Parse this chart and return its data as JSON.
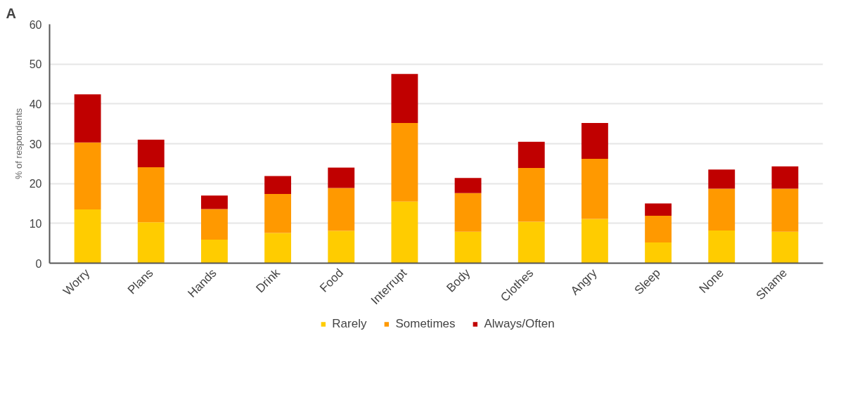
{
  "chart_data": {
    "type": "bar",
    "stacked": true,
    "ylabel": "% of respondents",
    "annotations": [
      "A"
    ],
    "categories": [
      "Worry",
      "Plans",
      "Hands",
      "Drink",
      "Food",
      "Interrupt",
      "Body",
      "Clothes",
      "Angry",
      "Sleep",
      "None",
      "Shame"
    ],
    "series": [
      {
        "name": "Rarely",
        "color": "#ffcc00",
        "values": [
          13.5,
          10.3,
          5.9,
          7.6,
          8.1,
          15.5,
          7.9,
          10.4,
          11.1,
          5.2,
          8.2,
          7.9
        ]
      },
      {
        "name": "Sometimes",
        "color": "#ff9900",
        "values": [
          16.8,
          13.8,
          7.7,
          9.8,
          10.8,
          19.7,
          9.7,
          13.5,
          15.1,
          6.7,
          10.5,
          10.8
        ]
      },
      {
        "name": "Always/Often",
        "color": "#c00000",
        "values": [
          12.1,
          6.9,
          3.4,
          4.5,
          5.1,
          12.3,
          3.8,
          6.6,
          9.0,
          3.1,
          4.8,
          5.6
        ]
      }
    ],
    "ylim": [
      0,
      60
    ],
    "yticks": [
      0,
      10,
      20,
      30,
      40,
      50,
      60
    ],
    "grid": "y",
    "legend": "bottom"
  }
}
